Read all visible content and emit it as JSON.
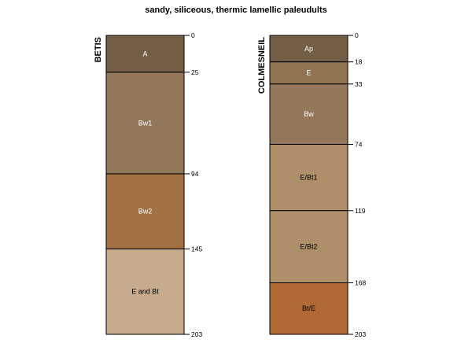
{
  "chart_data": {
    "type": "soil-profile",
    "title": "sandy, siliceous, thermic lamellic paleudults",
    "depth_range": [
      0,
      203
    ],
    "profiles": [
      {
        "name": "BETIS",
        "horizons": [
          {
            "name": "A",
            "top": 0,
            "bottom": 25,
            "color": "#735E46",
            "label_color": "#FFFFFF"
          },
          {
            "name": "Bw1",
            "top": 25,
            "bottom": 94,
            "color": "#93775A",
            "label_color": "#FFFFFF"
          },
          {
            "name": "Bw2",
            "top": 94,
            "bottom": 145,
            "color": "#A27144",
            "label_color": "#FFFFFF"
          },
          {
            "name": "E and Bt",
            "top": 145,
            "bottom": 203,
            "color": "#C6AB8D",
            "label_color": "#000000"
          }
        ],
        "depth_ticks": [
          0,
          25,
          94,
          145,
          203
        ]
      },
      {
        "name": "COLMESNEIL",
        "horizons": [
          {
            "name": "Ap",
            "top": 0,
            "bottom": 18,
            "color": "#735E46",
            "label_color": "#FFFFFF"
          },
          {
            "name": "E",
            "top": 18,
            "bottom": 33,
            "color": "#8F744F",
            "label_color": "#FFFFFF"
          },
          {
            "name": "Bw",
            "top": 33,
            "bottom": 74,
            "color": "#93775A",
            "label_color": "#FFFFFF"
          },
          {
            "name": "E/Bt1",
            "top": 74,
            "bottom": 119,
            "color": "#AE8F6A",
            "label_color": "#000000"
          },
          {
            "name": "E/Bt2",
            "top": 119,
            "bottom": 168,
            "color": "#AE8F6A",
            "label_color": "#000000"
          },
          {
            "name": "Bt/E",
            "top": 168,
            "bottom": 203,
            "color": "#B16A36",
            "label_color": "#000000"
          }
        ],
        "depth_ticks": [
          0,
          18,
          33,
          74,
          119,
          168,
          203
        ]
      }
    ]
  }
}
